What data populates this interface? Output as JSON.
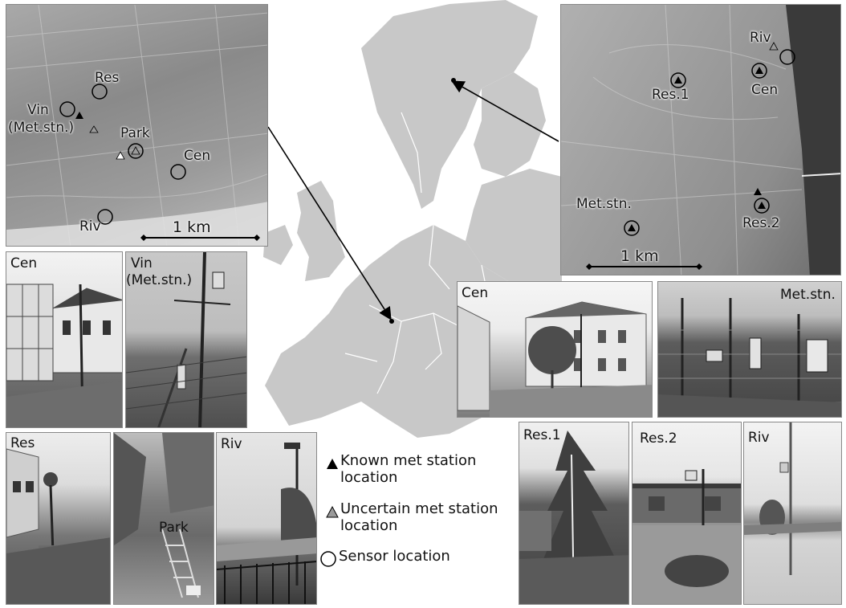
{
  "left_map": {
    "labels": {
      "res": "Res",
      "vin": "Vin",
      "met_stn": "(Met.stn.)",
      "park": "Park",
      "cen": "Cen",
      "riv": "Riv"
    },
    "scale_label": "1 km"
  },
  "right_map": {
    "labels": {
      "riv": "Riv",
      "res1": "Res.1",
      "cen": "Cen",
      "met_stn": "Met.stn.",
      "res2": "Res.2"
    },
    "scale_label": "1 km"
  },
  "photos": {
    "left_cen": "Cen",
    "left_vin": "Vin",
    "left_vin_sub": "(Met.stn.)",
    "left_res": "Res",
    "left_park": "Park",
    "left_riv": "Riv",
    "right_cen": "Cen",
    "right_met_stn": "Met.stn.",
    "right_res1": "Res.1",
    "right_res2": "Res.2",
    "right_riv": "Riv"
  },
  "legend": {
    "known": "Known met station location",
    "uncertain": "Uncertain met station location",
    "sensor": "Sensor location"
  },
  "colors": {
    "land": "#c8c8c8",
    "sea": "#ffffff",
    "border": "#ffffff",
    "uncertain_fill": "#9a9a9a"
  }
}
